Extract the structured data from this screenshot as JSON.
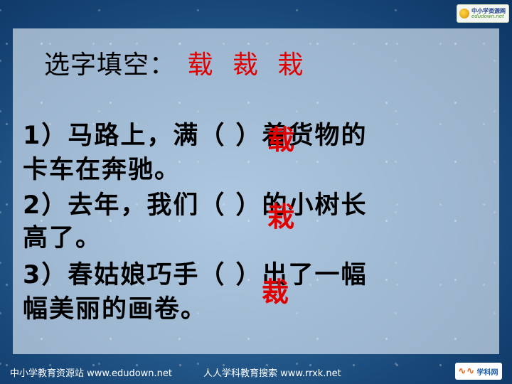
{
  "header": {
    "logo_line1": "中小学资源网",
    "logo_line2": "edudown.net"
  },
  "title": {
    "label": "选字填空：",
    "options": [
      "载",
      "裁",
      "栽"
    ]
  },
  "questions": [
    {
      "line1": "1）马路上，满（    ）着货物的",
      "line2": "卡车在奔驰。",
      "answer": "载"
    },
    {
      "line1": "2）去年，我们（    ）的小树长",
      "line2": "高了。",
      "answer": "栽"
    },
    {
      "line1": "3）春姑娘巧手（    ）出了一幅",
      "line2": "幅美丽的画卷。",
      "answer": "裁"
    }
  ],
  "footer": {
    "left": "中小学教育资源站 www.edudown.net",
    "center": "人人学科教育搜索 www.rrxk.net",
    "logo_text": "学科网"
  },
  "colors": {
    "answer": "#e00000",
    "text": "#000000",
    "background": "#2d6496"
  }
}
